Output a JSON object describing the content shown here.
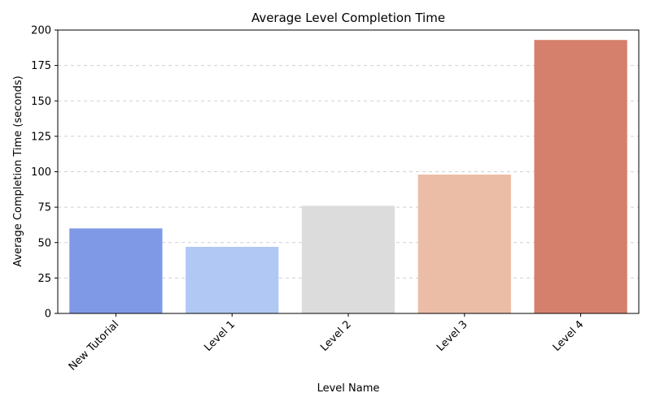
{
  "chart_data": {
    "type": "bar",
    "title": "Average Level Completion Time",
    "xlabel": "Level Name",
    "ylabel": "Average Completion Time (seconds)",
    "categories": [
      "New Tutorial",
      "Level 1",
      "Level 2",
      "Level 3",
      "Level 4"
    ],
    "values": [
      60,
      47,
      76,
      98,
      193
    ],
    "colors": [
      "#7f99e6",
      "#b2c8f4",
      "#dcdcdc",
      "#ecbda6",
      "#d5806c"
    ],
    "ylim": [
      0,
      200
    ],
    "yticks": [
      0,
      25,
      50,
      75,
      100,
      125,
      150,
      175,
      200
    ],
    "grid": "y-dashed",
    "legend": "none"
  }
}
